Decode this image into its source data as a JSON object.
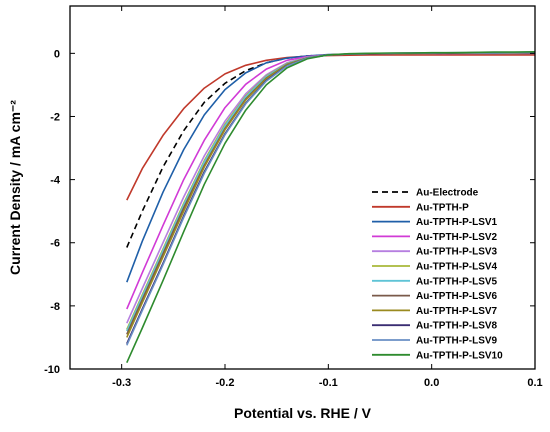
{
  "chart_data": {
    "type": "line",
    "title": "",
    "xlabel": "Potential vs. RHE / V",
    "ylabel": "Current Density / mA cm⁻²",
    "xlim": [
      -0.35,
      0.1
    ],
    "ylim": [
      -10,
      1.5
    ],
    "x_ticks": [
      -0.3,
      -0.2,
      -0.1,
      0.0,
      0.1
    ],
    "x_tick_labels": [
      "-0.3",
      "-0.2",
      "-0.1",
      "0.0",
      "0.1"
    ],
    "y_ticks": [
      0,
      -2,
      -4,
      -6,
      -8,
      -10
    ],
    "y_tick_labels": [
      "0",
      "-2",
      "-4",
      "-6",
      "-8",
      "-10"
    ],
    "grid": false,
    "legend_position": "bottom-right",
    "x": [
      -0.295,
      -0.28,
      -0.26,
      -0.24,
      -0.22,
      -0.2,
      -0.18,
      -0.16,
      -0.14,
      -0.12,
      -0.1,
      -0.08,
      -0.06,
      -0.04,
      -0.02,
      0.0,
      0.02,
      0.04,
      0.06,
      0.08,
      0.1
    ],
    "series": [
      {
        "name": "Au-Electrode",
        "color": "#000000",
        "dash": true,
        "values": [
          -6.15,
          -5.0,
          -3.6,
          -2.45,
          -1.55,
          -0.95,
          -0.55,
          -0.3,
          -0.15,
          -0.08,
          -0.05,
          -0.03,
          -0.02,
          -0.01,
          0.0,
          0.0,
          0.0,
          0.01,
          0.01,
          0.01,
          0.02
        ]
      },
      {
        "name": "Au-TPTH-P",
        "color": "#c0392b",
        "dash": false,
        "values": [
          -4.65,
          -3.65,
          -2.6,
          -1.75,
          -1.1,
          -0.65,
          -0.38,
          -0.22,
          -0.13,
          -0.09,
          -0.07,
          -0.06,
          -0.05,
          -0.05,
          -0.05,
          -0.05,
          -0.05,
          -0.05,
          -0.05,
          -0.05,
          -0.05
        ]
      },
      {
        "name": "Au-TPTH-P-LSV1",
        "color": "#1f5fa8",
        "dash": false,
        "values": [
          -7.25,
          -5.95,
          -4.4,
          -3.05,
          -1.95,
          -1.15,
          -0.62,
          -0.3,
          -0.15,
          -0.08,
          -0.04,
          -0.02,
          -0.01,
          0.0,
          0.0,
          0.0,
          0.0,
          0.0,
          0.0,
          0.0,
          0.0
        ]
      },
      {
        "name": "Au-TPTH-P-LSV2",
        "color": "#d13ad6",
        "dash": false,
        "values": [
          -8.1,
          -6.95,
          -5.45,
          -4.0,
          -2.75,
          -1.72,
          -0.98,
          -0.5,
          -0.22,
          -0.1,
          -0.05,
          -0.02,
          -0.01,
          0.0,
          0.0,
          0.0,
          0.0,
          0.0,
          0.01,
          0.01,
          0.01
        ]
      },
      {
        "name": "Au-TPTH-P-LSV3",
        "color": "#b67fe0",
        "dash": false,
        "values": [
          -8.55,
          -7.45,
          -6.0,
          -4.55,
          -3.25,
          -2.15,
          -1.28,
          -0.68,
          -0.3,
          -0.12,
          -0.05,
          -0.02,
          -0.01,
          0.0,
          0.0,
          0.0,
          0.0,
          0.01,
          0.01,
          0.01,
          0.01
        ]
      },
      {
        "name": "Au-TPTH-P-LSV4",
        "color": "#a8b83a",
        "dash": false,
        "values": [
          -8.75,
          -7.65,
          -6.2,
          -4.75,
          -3.4,
          -2.25,
          -1.35,
          -0.72,
          -0.32,
          -0.13,
          -0.05,
          -0.02,
          -0.01,
          0.0,
          0.0,
          0.0,
          0.01,
          0.01,
          0.01,
          0.01,
          0.02
        ]
      },
      {
        "name": "Au-TPTH-P-LSV5",
        "color": "#5fc4d6",
        "dash": false,
        "values": [
          -8.8,
          -7.7,
          -6.25,
          -4.8,
          -3.45,
          -2.3,
          -1.38,
          -0.74,
          -0.33,
          -0.13,
          -0.05,
          -0.02,
          -0.01,
          0.0,
          0.0,
          0.01,
          0.01,
          0.01,
          0.01,
          0.02,
          0.02
        ]
      },
      {
        "name": "Au-TPTH-P-LSV6",
        "color": "#7a5a4a",
        "dash": false,
        "values": [
          -8.9,
          -7.8,
          -6.35,
          -4.9,
          -3.55,
          -2.38,
          -1.45,
          -0.78,
          -0.35,
          -0.14,
          -0.05,
          -0.02,
          -0.01,
          0.0,
          0.0,
          0.01,
          0.01,
          0.01,
          0.02,
          0.02,
          0.02
        ]
      },
      {
        "name": "Au-TPTH-P-LSV7",
        "color": "#9a8a20",
        "dash": false,
        "values": [
          -9.0,
          -7.9,
          -6.45,
          -5.0,
          -3.6,
          -2.42,
          -1.48,
          -0.8,
          -0.36,
          -0.14,
          -0.05,
          -0.02,
          -0.01,
          0.0,
          0.0,
          0.01,
          0.01,
          0.02,
          0.02,
          0.02,
          0.03
        ]
      },
      {
        "name": "Au-TPTH-P-LSV8",
        "color": "#3a2d72",
        "dash": false,
        "values": [
          -9.2,
          -8.1,
          -6.65,
          -5.15,
          -3.75,
          -2.55,
          -1.58,
          -0.86,
          -0.39,
          -0.15,
          -0.05,
          -0.02,
          -0.01,
          0.0,
          0.01,
          0.01,
          0.01,
          0.02,
          0.02,
          0.03,
          0.03
        ]
      },
      {
        "name": "Au-TPTH-P-LSV9",
        "color": "#6a8fc4",
        "dash": false,
        "values": [
          -9.25,
          -8.15,
          -6.7,
          -5.2,
          -3.8,
          -2.58,
          -1.6,
          -0.88,
          -0.4,
          -0.15,
          -0.05,
          -0.02,
          0.0,
          0.0,
          0.01,
          0.01,
          0.02,
          0.02,
          0.03,
          0.03,
          0.04
        ]
      },
      {
        "name": "Au-TPTH-P-LSV10",
        "color": "#2e8b2e",
        "dash": false,
        "values": [
          -9.8,
          -8.7,
          -7.2,
          -5.65,
          -4.15,
          -2.85,
          -1.8,
          -1.0,
          -0.46,
          -0.17,
          -0.05,
          -0.01,
          0.0,
          0.01,
          0.01,
          0.02,
          0.02,
          0.03,
          0.04,
          0.04,
          0.05
        ]
      }
    ]
  }
}
